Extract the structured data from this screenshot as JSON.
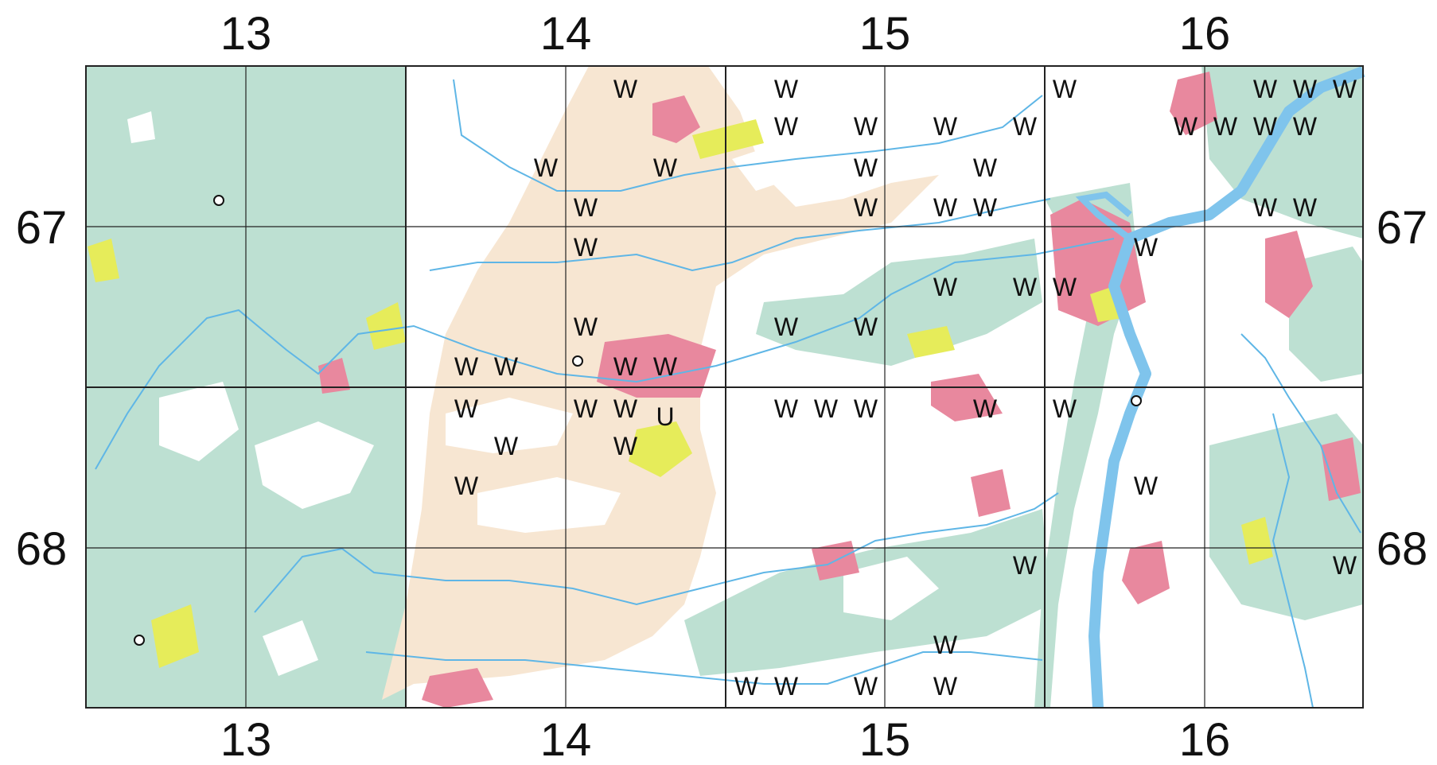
{
  "map": {
    "x_labels_top": [
      "13",
      "14",
      "15",
      "16"
    ],
    "x_labels_bottom": [
      "13",
      "14",
      "15",
      "16"
    ],
    "y_labels_left": [
      "67",
      "68"
    ],
    "y_labels_right": [
      "67",
      "68"
    ],
    "marker_w": "W",
    "marker_u": "U",
    "colors": {
      "forest": "#bde0d2",
      "farmland": "#f7e6d2",
      "settlement": "#e8889e",
      "meadow": "#e6ec5a",
      "open": "#ffffff",
      "river": "#5fb6e6",
      "river_fill": "#7fc4ec",
      "grid": "#222222"
    }
  }
}
